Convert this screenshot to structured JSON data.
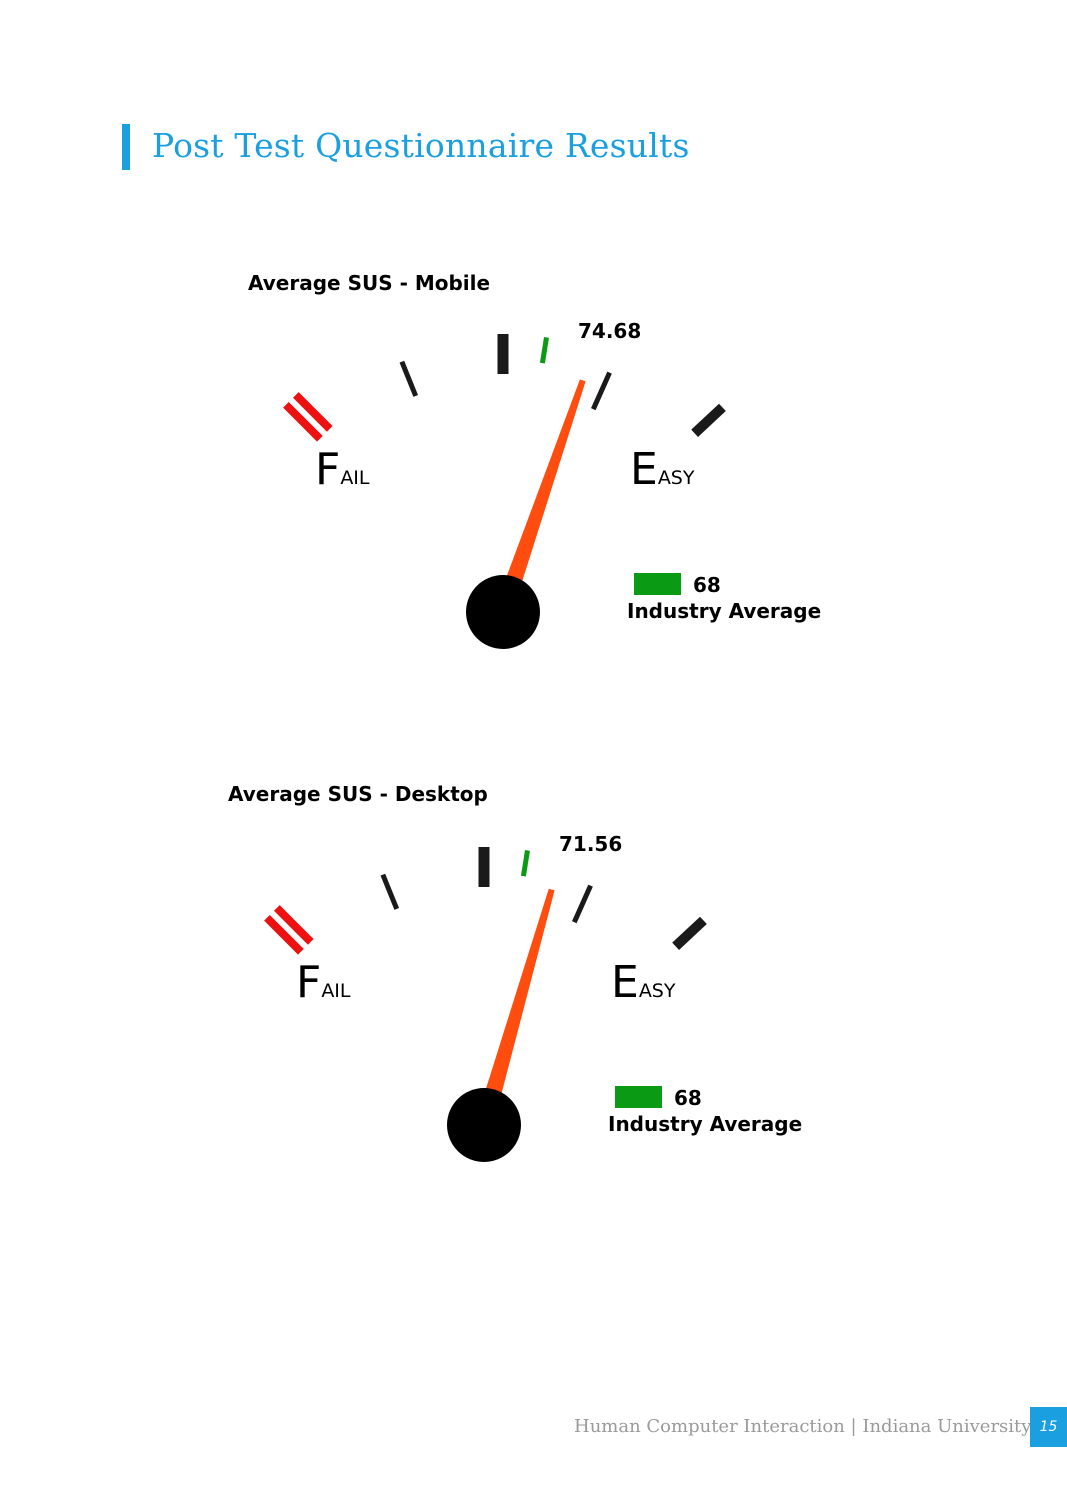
{
  "page": {
    "title": "Post Test Questionnaire Results",
    "footer": "Human Computer Interaction | Indiana University",
    "page_number": "15"
  },
  "colors": {
    "accent": "#1aa0e0",
    "needle": "#ff4d10",
    "fail_marker": "#ee1111",
    "industry_marker": "#0a9a14",
    "tick": "#1a1a1a"
  },
  "gauges": [
    {
      "heading": "Average SUS - Mobile",
      "value": 74.68,
      "value_label": "74.68",
      "fail_label_big": "F",
      "fail_label_small": "AIL",
      "easy_label_big": "E",
      "easy_label_small": "ASY",
      "legend_value": "68",
      "legend_label": "Industry Average"
    },
    {
      "heading": "Average SUS - Desktop",
      "value": 71.56,
      "value_label": "71.56",
      "fail_label_big": "F",
      "fail_label_small": "AIL",
      "easy_label_big": "E",
      "easy_label_small": "ASY",
      "legend_value": "68",
      "legend_label": "Industry Average"
    }
  ],
  "chart_data": [
    {
      "type": "gauge",
      "title": "Average SUS - Mobile",
      "value": 74.68,
      "reference": {
        "name": "Industry Average",
        "value": 68
      },
      "range_labels": [
        "Fail",
        "Easy"
      ]
    },
    {
      "type": "gauge",
      "title": "Average SUS - Desktop",
      "value": 71.56,
      "reference": {
        "name": "Industry Average",
        "value": 68
      },
      "range_labels": [
        "Fail",
        "Easy"
      ]
    }
  ]
}
